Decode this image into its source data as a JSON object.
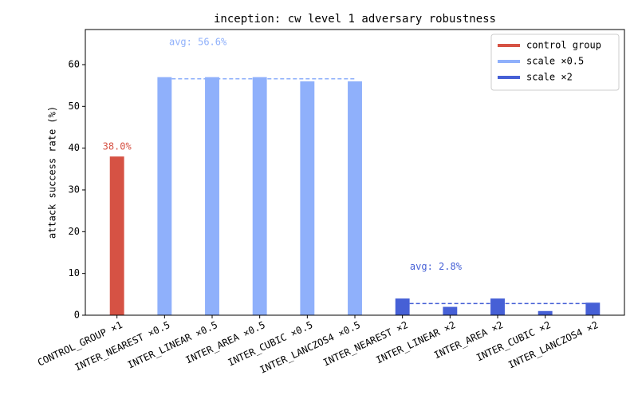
{
  "chart_data": {
    "type": "bar",
    "title": "inception: cw level 1 adversary robustness",
    "y_label": "attack success rate (%)",
    "categories": [
      "CONTROL_GROUP ×1",
      "INTER_NEAREST ×0.5",
      "INTER_LINEAR ×0.5",
      "INTER_AREA ×0.5",
      "INTER_CUBIC ×0.5",
      "INTER_LANCZOS4 ×0.5",
      "INTER_NEAREST ×2",
      "INTER_LINEAR ×2",
      "INTER_AREA ×2",
      "INTER_CUBIC ×2",
      "INTER_LANCZOS4 ×2"
    ],
    "series": [
      {
        "name": "control group",
        "color": "#d65244",
        "values": [
          38,
          null,
          null,
          null,
          null,
          null,
          null,
          null,
          null,
          null,
          null
        ],
        "value_labels": [
          "38.0%",
          null,
          null,
          null,
          null,
          null,
          null,
          null,
          null,
          null,
          null
        ]
      },
      {
        "name": "scale ×0.5",
        "color": "#8fb0fb",
        "values": [
          null,
          57,
          57,
          57,
          56,
          56,
          null,
          null,
          null,
          null,
          null
        ],
        "average": {
          "value": 56.6,
          "label": "avg: 56.6%"
        }
      },
      {
        "name": "scale ×2",
        "color": "#4660d6",
        "values": [
          null,
          null,
          null,
          null,
          null,
          null,
          4,
          2,
          4,
          1,
          3
        ],
        "average": {
          "value": 2.8,
          "label": "avg: 2.8%"
        }
      }
    ],
    "ylim": [
      0,
      68.4
    ],
    "yticks": [
      0,
      10,
      20,
      30,
      40,
      50,
      60
    ],
    "legend": "upper right",
    "grid": false
  }
}
